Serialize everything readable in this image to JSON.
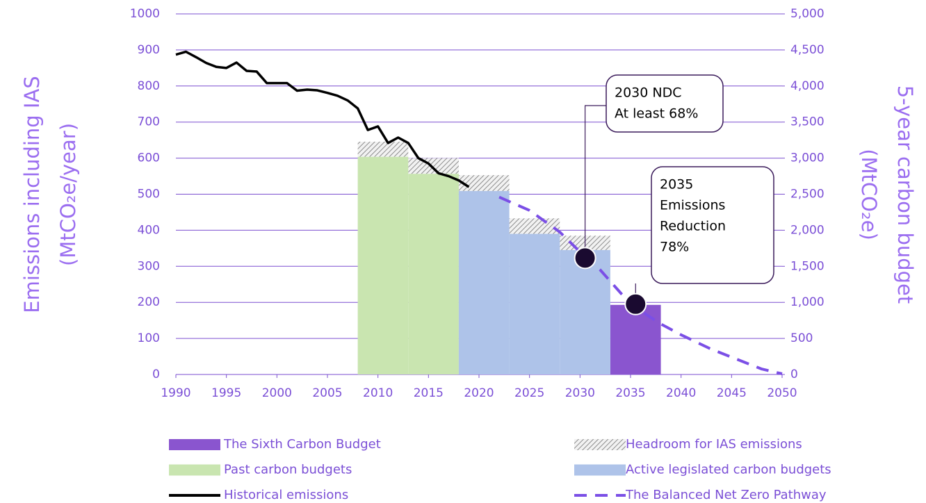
{
  "chart_data": {
    "type": "combo",
    "ylabel": [
      "Emissions including IAS",
      "(MtCO₂e/year)"
    ],
    "y2label": [
      "5-year carbon budget",
      "(MtCO₂e)"
    ],
    "xlim": [
      1990,
      2050
    ],
    "xticks": [
      1990,
      1995,
      2000,
      2005,
      2010,
      2015,
      2020,
      2025,
      2030,
      2035,
      2040,
      2045,
      2050
    ],
    "ylim": [
      0,
      1000
    ],
    "yticks": [
      0,
      100,
      200,
      300,
      400,
      500,
      600,
      700,
      800,
      900,
      1000
    ],
    "y2lim": [
      0,
      5000
    ],
    "y2ticks": [
      0,
      500,
      {
        "value": 1000,
        "label": "1,000"
      },
      {
        "value": 1500,
        "label": "1,500"
      },
      {
        "value": 2000,
        "label": "2,000"
      },
      {
        "value": 2500,
        "label": "2,500"
      },
      {
        "value": 3000,
        "label": "3,000"
      },
      {
        "value": 3500,
        "label": "3,500"
      },
      {
        "value": 4000,
        "label": "4,000"
      },
      {
        "value": 4500,
        "label": "4,500"
      },
      {
        "value": 5000,
        "label": "5,000"
      }
    ],
    "grid": true,
    "series": [
      {
        "name": "The Sixth Carbon Budget",
        "type": "bar",
        "axis": "y2",
        "color": "#8a55cf",
        "x": [
          [
            2033,
            2038
          ]
        ],
        "values": [
          965
        ]
      },
      {
        "name": "Headroom for IAS emissions",
        "type": "stacked-bar",
        "axis": "y2",
        "color": "hatch",
        "x": [
          [
            2008,
            2013
          ],
          [
            2013,
            2018
          ],
          [
            2018,
            2023
          ],
          [
            2023,
            2028
          ],
          [
            2028,
            2033
          ]
        ],
        "values": [
          210,
          220,
          220,
          215,
          200
        ]
      },
      {
        "name": "Past carbon budgets",
        "type": "bar",
        "axis": "y2",
        "color": "#c9e5b0",
        "x": [
          [
            2008,
            2013
          ],
          [
            2013,
            2018
          ]
        ],
        "values": [
          3018,
          2782
        ]
      },
      {
        "name": "Active legislated carbon budgets",
        "type": "bar",
        "axis": "y2",
        "color": "#aec3e9",
        "x": [
          [
            2018,
            2023
          ],
          [
            2023,
            2028
          ],
          [
            2028,
            2033
          ]
        ],
        "values": [
          2544,
          1950,
          1725
        ]
      },
      {
        "name": "Historical emissions",
        "type": "line",
        "color": "#000000",
        "dashed": false,
        "x": [
          1990,
          1991,
          1992,
          1993,
          1994,
          1995,
          1996,
          1997,
          1998,
          1999,
          2000,
          2001,
          2002,
          2003,
          2004,
          2005,
          2006,
          2007,
          2008,
          2009,
          2010,
          2011,
          2012,
          2013,
          2014,
          2015,
          2016,
          2017,
          2018,
          2019
        ],
        "values": [
          887,
          895,
          880,
          864,
          853,
          850,
          865,
          842,
          840,
          808,
          808,
          808,
          787,
          790,
          788,
          781,
          773,
          760,
          738,
          678,
          688,
          642,
          657,
          642,
          600,
          585,
          558,
          550,
          538,
          520
        ]
      },
      {
        "name": "The Balanced Net Zero Pathway",
        "type": "line",
        "color": "#7b4fe6",
        "dashed": true,
        "x": [
          2022,
          2025,
          2028,
          2030,
          2032,
          2035,
          2038,
          2040,
          2043,
          2045,
          2048,
          2050
        ],
        "values": [
          492,
          455,
          395,
          340,
          290,
          195,
          140,
          110,
          70,
          48,
          15,
          2
        ]
      }
    ],
    "annotations": [
      {
        "x": 2030.5,
        "y": 323,
        "text": [
          "2030 NDC",
          "At least 68%"
        ]
      },
      {
        "x": 2035.5,
        "y": 195,
        "text": [
          "2035",
          "Emissions",
          "Reduction",
          "78%"
        ]
      }
    ]
  }
}
